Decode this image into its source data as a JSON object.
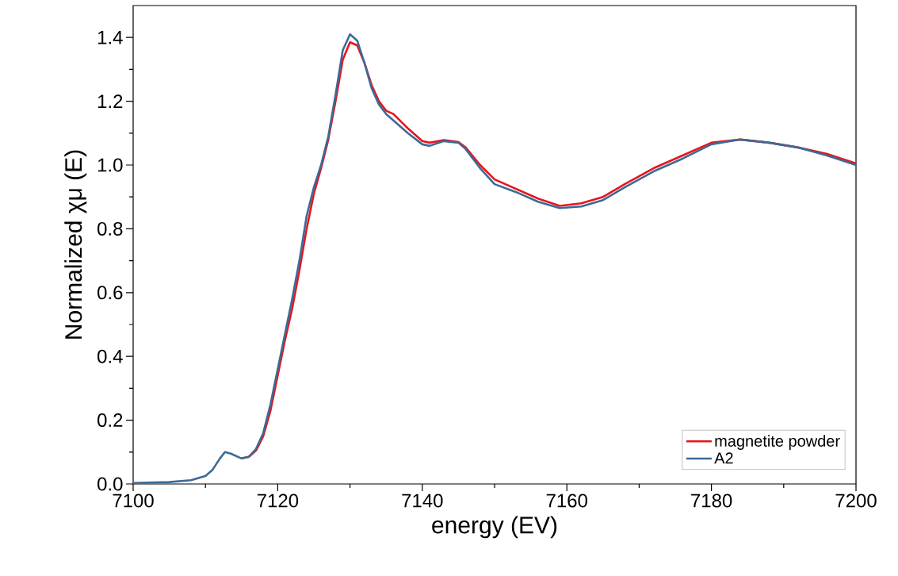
{
  "chart_data": {
    "type": "line",
    "xlabel": "energy (EV)",
    "ylabel": "Normalized χμ (E)",
    "xlim": [
      7100,
      7200
    ],
    "ylim": [
      0,
      1.5
    ],
    "xticks": [
      7100,
      7120,
      7140,
      7160,
      7180,
      7200
    ],
    "yticks": [
      {
        "value": 0,
        "label": "0.0"
      },
      {
        "value": 0.2,
        "label": "0.2"
      },
      {
        "value": 0.4,
        "label": "0.4"
      },
      {
        "value": 0.6,
        "label": "0.6"
      },
      {
        "value": 0.8,
        "label": "0.8"
      },
      {
        "value": 1.0,
        "label": "1.0"
      },
      {
        "value": 1.2,
        "label": "1.2"
      },
      {
        "value": 1.4,
        "label": "1.4"
      }
    ],
    "grid": false,
    "legend": "bottom right",
    "marker": "none",
    "line_style": "solid",
    "series": [
      {
        "name": "magnetite powder",
        "color": "#e8141c",
        "x": [
          7115,
          7116,
          7117,
          7118,
          7119,
          7120,
          7121,
          7122,
          7123,
          7124,
          7125,
          7126,
          7127,
          7128,
          7129,
          7130,
          7131,
          7132,
          7133,
          7134,
          7135,
          7136,
          7138,
          7140,
          7141,
          7143,
          7145,
          7146,
          7148,
          7150,
          7153,
          7156,
          7159,
          7162,
          7165,
          7168,
          7172,
          7176,
          7180,
          7184,
          7188,
          7192,
          7196,
          7200
        ],
        "values": [
          0.08,
          0.085,
          0.105,
          0.15,
          0.23,
          0.34,
          0.45,
          0.55,
          0.67,
          0.8,
          0.91,
          0.99,
          1.08,
          1.2,
          1.33,
          1.385,
          1.375,
          1.32,
          1.25,
          1.2,
          1.17,
          1.16,
          1.115,
          1.075,
          1.07,
          1.078,
          1.072,
          1.055,
          1.0,
          0.955,
          0.925,
          0.895,
          0.872,
          0.88,
          0.9,
          0.94,
          0.99,
          1.03,
          1.07,
          1.08,
          1.07,
          1.055,
          1.035,
          1.005
        ]
      },
      {
        "name": "A2",
        "color": "#3c6a96",
        "x": [
          7100,
          7105,
          7108,
          7110,
          7111,
          7112,
          7112.7,
          7113.5,
          7115,
          7116,
          7117,
          7118,
          7119,
          7120,
          7121,
          7122,
          7123,
          7124,
          7125,
          7126,
          7127,
          7128,
          7129,
          7130,
          7131,
          7132,
          7133,
          7134,
          7135,
          7136,
          7138,
          7140,
          7141,
          7143,
          7145,
          7146,
          7148,
          7150,
          7153,
          7156,
          7159,
          7162,
          7165,
          7168,
          7172,
          7176,
          7180,
          7184,
          7188,
          7192,
          7196,
          7200
        ],
        "values": [
          0.003,
          0.006,
          0.012,
          0.025,
          0.045,
          0.08,
          0.1,
          0.095,
          0.08,
          0.085,
          0.11,
          0.16,
          0.25,
          0.36,
          0.47,
          0.58,
          0.7,
          0.84,
          0.93,
          1.0,
          1.09,
          1.22,
          1.36,
          1.41,
          1.39,
          1.32,
          1.24,
          1.19,
          1.16,
          1.14,
          1.1,
          1.065,
          1.06,
          1.075,
          1.07,
          1.05,
          0.99,
          0.94,
          0.915,
          0.885,
          0.865,
          0.87,
          0.89,
          0.93,
          0.98,
          1.02,
          1.065,
          1.08,
          1.07,
          1.055,
          1.03,
          1.0
        ]
      }
    ]
  }
}
